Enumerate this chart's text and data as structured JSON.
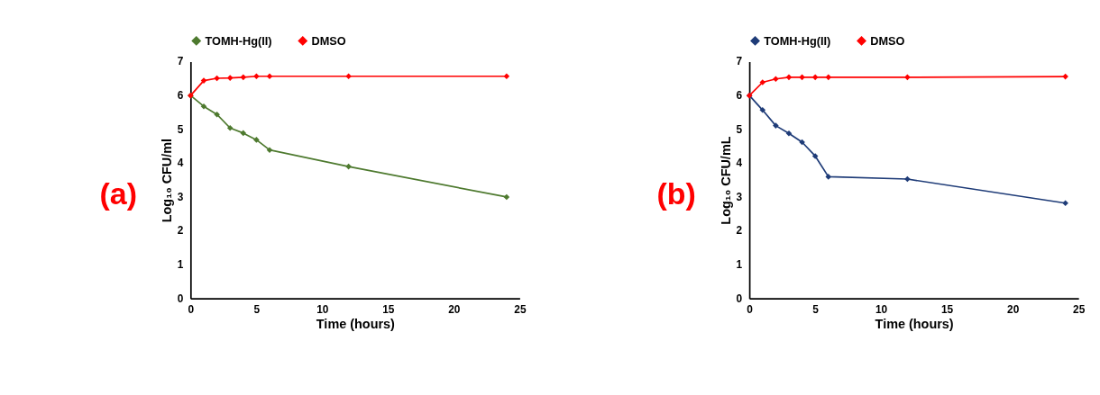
{
  "chart_data": [
    {
      "type": "line",
      "xlabel": "Time (hours)",
      "ylabel": "Log₁₀ CFU/ml",
      "annotations": [
        "(a)"
      ],
      "x": [
        0,
        1,
        2,
        3,
        4,
        5,
        6,
        12,
        24
      ],
      "series": [
        {
          "name": "TOMH-Hg(II)",
          "color": "#4e7a2f",
          "values": [
            6.0,
            5.68,
            5.44,
            5.04,
            4.89,
            4.69,
            4.39,
            3.9,
            3.0
          ]
        },
        {
          "name": "DMSO",
          "color": "#ff0000",
          "values": [
            6.0,
            6.44,
            6.51,
            6.52,
            6.54,
            6.57,
            6.57,
            6.57,
            6.57
          ]
        }
      ],
      "xlim": [
        0,
        25
      ],
      "xticks": [
        0,
        5,
        10,
        15,
        20,
        25
      ],
      "ylim": [
        0,
        7
      ],
      "yticks": [
        0,
        1,
        2,
        3,
        4,
        5,
        6,
        7
      ],
      "grid": false,
      "legend": "top",
      "marker": "diamond",
      "line_style": "solid"
    },
    {
      "type": "line",
      "xlabel": "Time (hours)",
      "ylabel": "Log₁₀ CFU/mL",
      "annotations": [
        "(b)"
      ],
      "x": [
        0,
        1,
        2,
        3,
        4,
        5,
        6,
        12,
        24
      ],
      "series": [
        {
          "name": "TOMH-Hg(II)",
          "color": "#1f3c78",
          "values": [
            6.0,
            5.57,
            5.11,
            4.88,
            4.62,
            4.21,
            3.6,
            3.53,
            2.82
          ]
        },
        {
          "name": "DMSO",
          "color": "#ff0000",
          "values": [
            6.0,
            6.39,
            6.49,
            6.54,
            6.54,
            6.54,
            6.54,
            6.54,
            6.56
          ]
        }
      ],
      "xlim": [
        0,
        25
      ],
      "xticks": [
        0,
        5,
        10,
        15,
        20,
        25
      ],
      "ylim": [
        0,
        7
      ],
      "yticks": [
        0,
        1,
        2,
        3,
        4,
        5,
        6,
        7
      ],
      "grid": false,
      "legend": "top",
      "marker": "diamond",
      "line_style": "solid"
    }
  ]
}
